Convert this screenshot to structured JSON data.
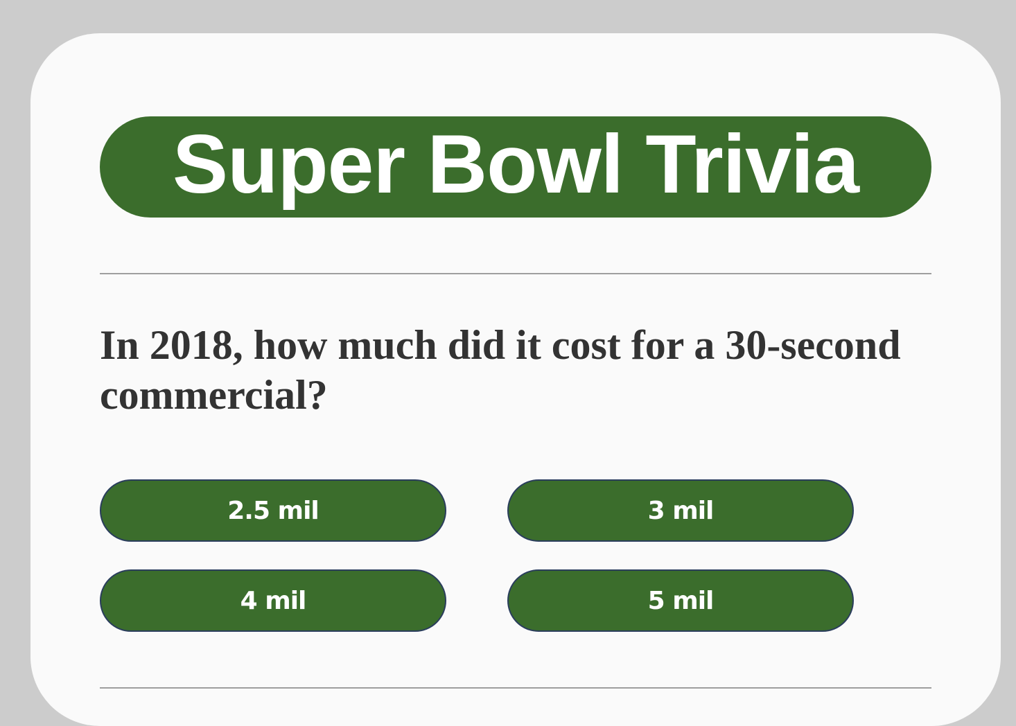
{
  "title": "Super Bowl Trivia",
  "question": "In 2018, how much did it cost for a 30-second commercial?",
  "answers": [
    {
      "label": "2.5 mil"
    },
    {
      "label": "3 mil"
    },
    {
      "label": "4 mil"
    },
    {
      "label": "5 mil"
    }
  ],
  "colors": {
    "background": "#cccccc",
    "card": "#fafafa",
    "accent_green": "#3b6d2c",
    "button_border": "#2a3d5c",
    "question_text": "#333333",
    "divider": "#9e9e9e"
  }
}
